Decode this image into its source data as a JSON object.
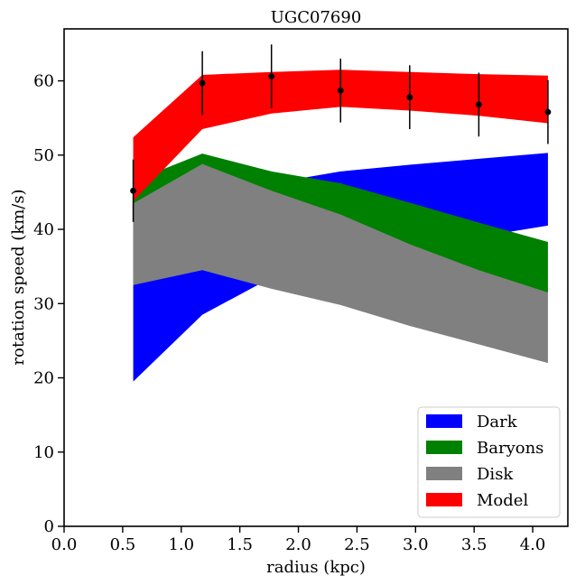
{
  "chart_data": {
    "type": "area",
    "title": "UGC07690",
    "xlabel": "radius (kpc)",
    "ylabel": "rotation speed (km/s)",
    "xlim": [
      0.0,
      4.3
    ],
    "ylim": [
      0,
      67
    ],
    "xticks": [
      "0.0",
      "0.5",
      "1.0",
      "1.5",
      "2.0",
      "2.5",
      "3.0",
      "3.5",
      "4.0"
    ],
    "yticks": [
      "0",
      "10",
      "20",
      "30",
      "40",
      "50",
      "60"
    ],
    "grid": false,
    "legend_position": "lower-right",
    "x": [
      0.59,
      1.18,
      1.77,
      2.36,
      2.95,
      3.54,
      4.13
    ],
    "bands": [
      {
        "name": "Dark",
        "color": "#0000ff",
        "lower": [
          19.5,
          28.5,
          33.5,
          36.5,
          38.0,
          39.0,
          40.5
        ],
        "upper": [
          40.5,
          45.0,
          46.2,
          47.8,
          48.7,
          49.5,
          50.3
        ]
      },
      {
        "name": "Baryons",
        "color": "#008000",
        "lower": [
          32.5,
          37.8,
          36.5,
          35.3,
          34.2,
          33.2,
          31.3
        ],
        "upper": [
          46.5,
          50.2,
          47.8,
          46.2,
          43.6,
          40.9,
          38.3
        ]
      },
      {
        "name": "Disk",
        "color": "#808080",
        "lower": [
          32.5,
          34.5,
          32.0,
          29.8,
          27.0,
          24.5,
          22.0
        ],
        "upper": [
          43.5,
          48.8,
          45.2,
          42.0,
          38.0,
          34.5,
          31.5
        ]
      },
      {
        "name": "Model",
        "color": "#ff0000",
        "lower": [
          43.8,
          53.5,
          55.6,
          56.5,
          56.0,
          55.3,
          54.3
        ],
        "upper": [
          52.4,
          60.8,
          61.2,
          61.5,
          61.2,
          60.9,
          60.7
        ]
      }
    ],
    "observations": {
      "x": [
        0.59,
        1.18,
        1.77,
        2.36,
        2.95,
        3.54,
        4.13
      ],
      "y": [
        45.2,
        59.7,
        60.6,
        58.7,
        57.8,
        56.8,
        55.8
      ],
      "yerr": [
        4.2,
        4.3,
        4.3,
        4.3,
        4.3,
        4.3,
        4.3
      ]
    },
    "legend": [
      "Dark",
      "Baryons",
      "Disk",
      "Model"
    ]
  }
}
